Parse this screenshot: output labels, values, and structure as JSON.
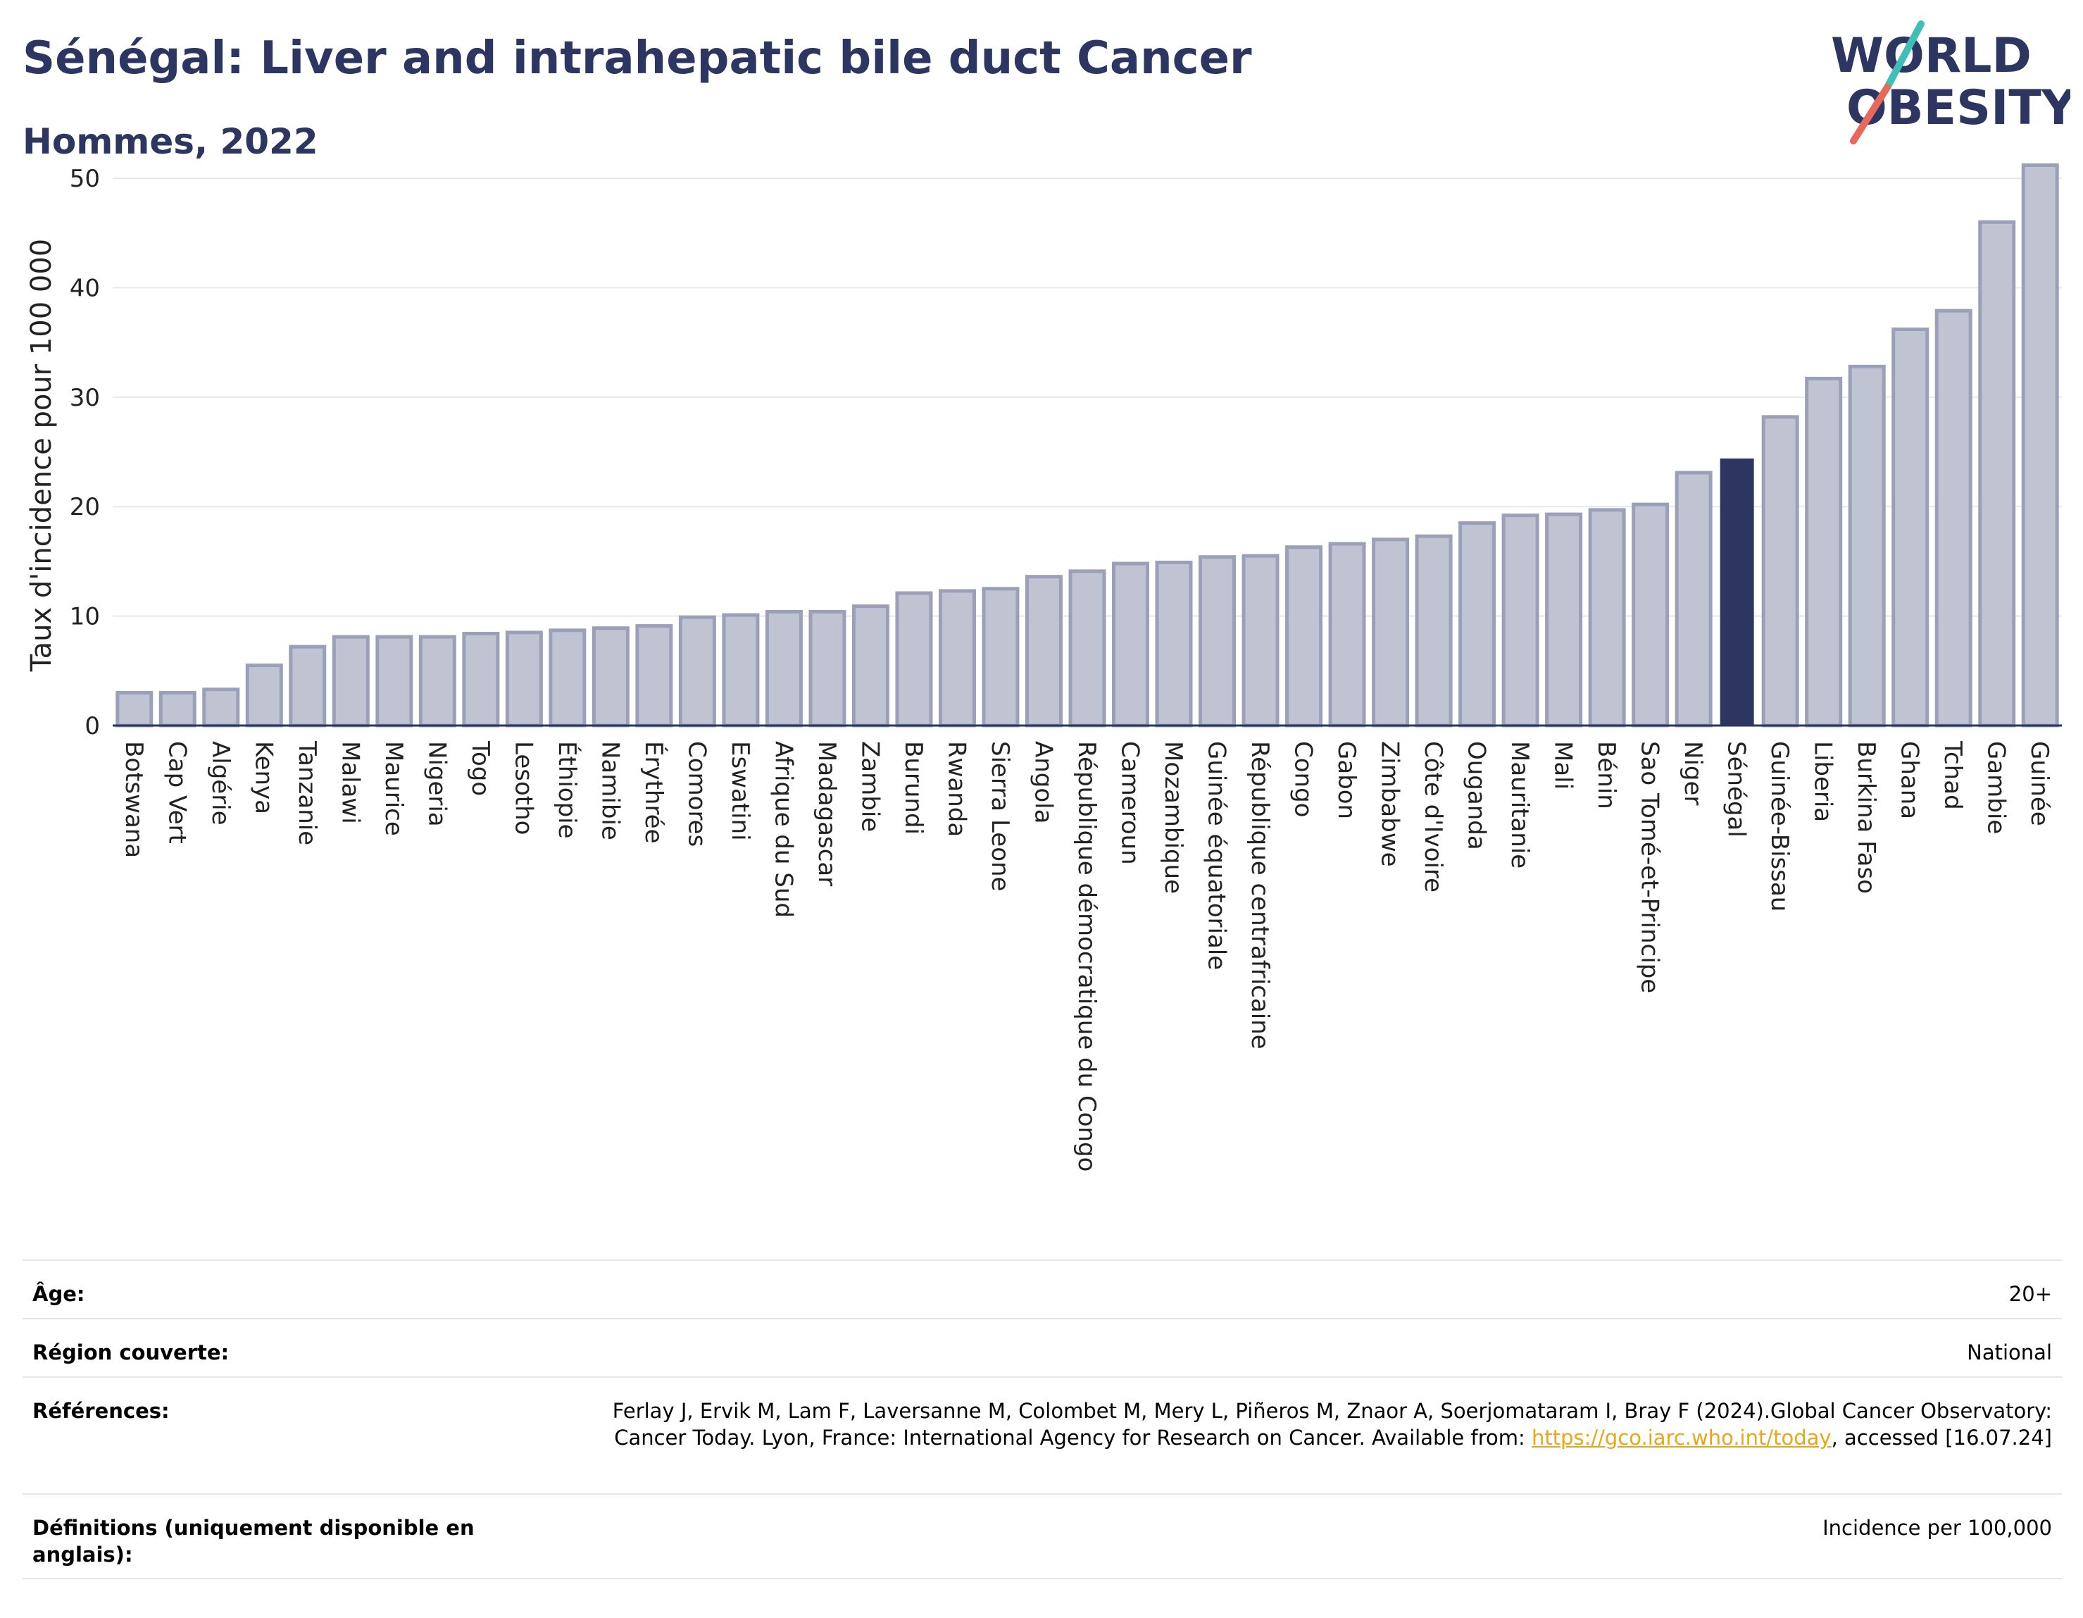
{
  "header": {
    "title": "Sénégal: Liver and intrahepatic bile duct Cancer",
    "subtitle": "Hommes, 2022"
  },
  "logo": {
    "line1": "WORLD",
    "line2": "OBESITY",
    "colors": {
      "text": "#2c3660",
      "slash_top": "#3fbfb5",
      "slash_bottom": "#e8685a"
    }
  },
  "chart_data": {
    "type": "bar",
    "title": "",
    "xlabel": "",
    "ylabel": "Taux d'incidence pour 100 000",
    "ylim": [
      0,
      52
    ],
    "yticks": [
      0,
      10,
      20,
      30,
      40,
      50
    ],
    "grid": true,
    "legend": "none",
    "highlight": "Sénégal",
    "colors": {
      "bar": "#c0c4d2",
      "bar_border": "#9aa0b8",
      "highlight": "#2c3660",
      "axis": "#2c3660",
      "grid": "#e8e8e8"
    },
    "categories": [
      "Botswana",
      "Cap Vert",
      "Algérie",
      "Kenya",
      "Tanzanie",
      "Malawi",
      "Maurice",
      "Nigeria",
      "Togo",
      "Lesotho",
      "Éthiopie",
      "Namibie",
      "Érythrée",
      "Comores",
      "Eswatini",
      "Afrique du Sud",
      "Madagascar",
      "Zambie",
      "Burundi",
      "Rwanda",
      "Sierra Leone",
      "Angola",
      "République démocratique du Congo",
      "Cameroun",
      "Mozambique",
      "Guinée équatoriale",
      "République centrafricaine",
      "Congo",
      "Gabon",
      "Zimbabwe",
      "Côte d'Ivoire",
      "Ouganda",
      "Mauritanie",
      "Mali",
      "Bénin",
      "Sao Tomé-et-Principe",
      "Niger",
      "Sénégal",
      "Guinée-Bissau",
      "Liberia",
      "Burkina Faso",
      "Ghana",
      "Tchad",
      "Gambie",
      "Guinée"
    ],
    "values": [
      3.0,
      3.0,
      3.3,
      5.5,
      7.2,
      8.1,
      8.1,
      8.1,
      8.4,
      8.5,
      8.7,
      8.9,
      9.1,
      9.9,
      10.1,
      10.4,
      10.4,
      10.9,
      12.1,
      12.3,
      12.5,
      13.6,
      14.1,
      14.8,
      14.9,
      15.4,
      15.5,
      16.3,
      16.6,
      17.0,
      17.3,
      18.5,
      19.2,
      19.3,
      19.7,
      20.2,
      23.1,
      24.4,
      28.2,
      31.7,
      32.8,
      36.2,
      37.9,
      46.0,
      51.2
    ]
  },
  "meta": {
    "age_label": "Âge:",
    "age_value": "20+",
    "region_label": "Région couverte:",
    "region_value": "National",
    "references_label": "Références:",
    "references_text_1": "Ferlay J, Ervik M, Lam F, Laversanne M, Colombet M, Mery L, Piñeros M, Znaor A, Soerjomataram I, Bray F (2024).Global Cancer Observatory: Cancer Today. Lyon, France: International Agency for Research on Cancer. Available from: ",
    "references_link": "https://gco.iarc.who.int/today",
    "references_text_2": ", accessed [16.07.24]",
    "definitions_label": "Définitions (uniquement disponible en anglais):",
    "definitions_value": "Incidence per 100,000"
  }
}
